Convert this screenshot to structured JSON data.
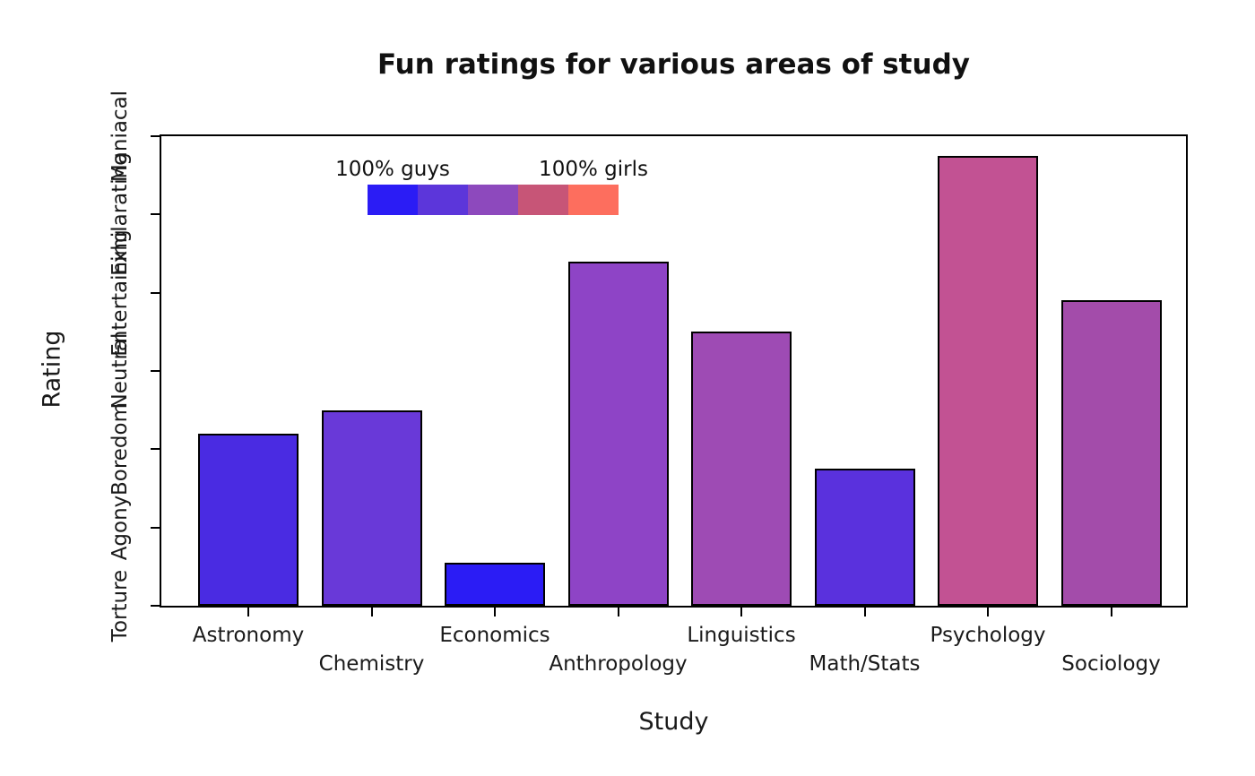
{
  "chart_data": {
    "type": "bar",
    "title": "Fun ratings for various areas of study",
    "xlabel": "Study",
    "ylabel": "Rating",
    "categories": [
      "Astronomy",
      "Chemistry",
      "Economics",
      "Anthropology",
      "Linguistics",
      "Math/Stats",
      "Psychology",
      "Sociology"
    ],
    "values": [
      3.2,
      3.5,
      1.55,
      5.4,
      4.5,
      2.75,
      6.75,
      4.9
    ],
    "bar_colors": [
      "#4a2be2",
      "#6939d8",
      "#2b1cf5",
      "#8e44c6",
      "#9e4bb4",
      "#5a31dd",
      "#c25293",
      "#a34caa"
    ],
    "y_tick_labels": [
      "Torture",
      "Agony",
      "Boredom",
      "Neutral",
      "Entertaining",
      "Exhilarating",
      "Maniacal"
    ],
    "y_range": [
      1,
      7
    ],
    "grid": false,
    "legend": {
      "left_label": "100% guys",
      "right_label": "100% girls",
      "gradient_colors": [
        "#2b1cf5",
        "#5c36da",
        "#8d49bd",
        "#c75577",
        "#fd6e5e"
      ]
    }
  }
}
